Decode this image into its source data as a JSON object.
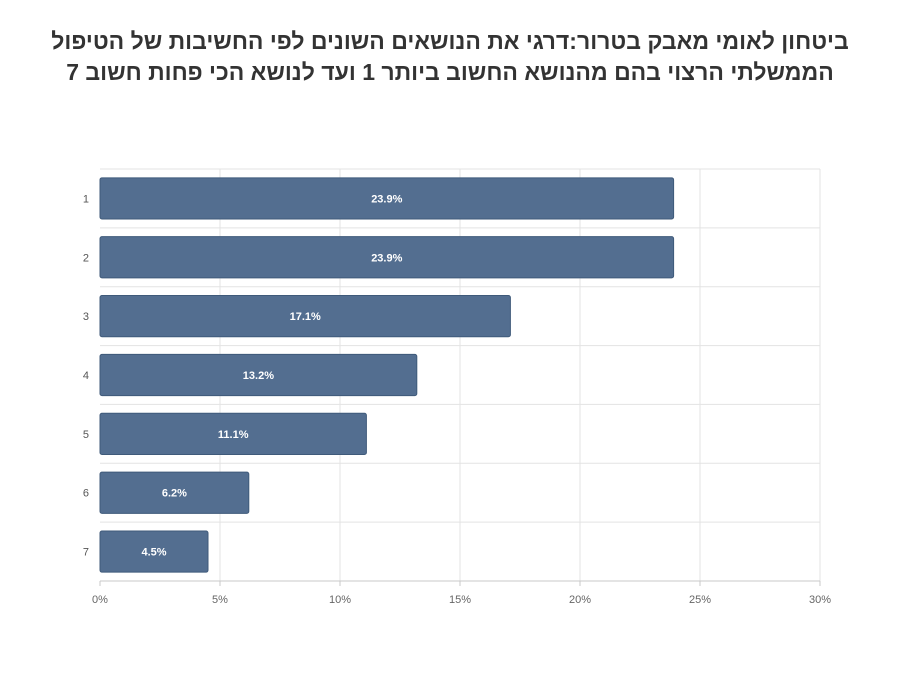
{
  "chart_data": {
    "type": "bar",
    "orientation": "horizontal",
    "title": "ביטחון לאומי מאבק בטרור:דרגי את הנושאים השונים לפי החשיבות של הטיפול\nהממשלתי הרצוי בהם  מהנושא החשוב ביותר 1 ועד לנושא הכי פחות חשוב 7",
    "categories": [
      "1",
      "2",
      "3",
      "4",
      "5",
      "6",
      "7"
    ],
    "values": [
      23.9,
      23.9,
      17.1,
      13.2,
      11.1,
      6.2,
      4.5
    ],
    "data_labels": [
      "23.9%",
      "23.9%",
      "17.1%",
      "13.2%",
      "11.1%",
      "6.2%",
      "4.5%"
    ],
    "xlim": [
      0,
      30
    ],
    "x_ticks": [
      0,
      5,
      10,
      15,
      20,
      25,
      30
    ],
    "x_tick_labels": [
      "0%",
      "5%",
      "10%",
      "15%",
      "20%",
      "25%",
      "30%"
    ],
    "grid": true,
    "legend": "none",
    "bar_color": "#536e90"
  }
}
